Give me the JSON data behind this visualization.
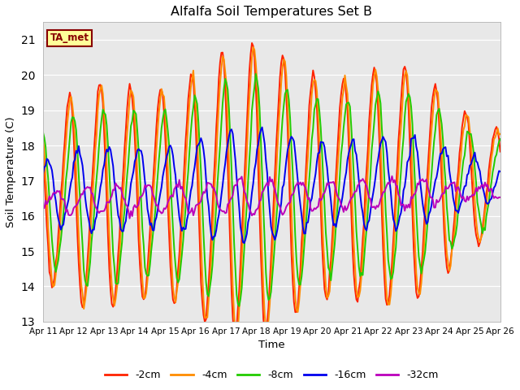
{
  "title": "Alfalfa Soil Temperatures Set B",
  "xlabel": "Time",
  "ylabel": "Soil Temperature (C)",
  "ylim": [
    13.0,
    21.5
  ],
  "yticks": [
    13.0,
    14.0,
    15.0,
    16.0,
    17.0,
    18.0,
    19.0,
    20.0,
    21.0
  ],
  "x_tick_labels": [
    "Apr 11",
    "Apr 12",
    "Apr 13",
    "Apr 14",
    "Apr 15",
    "Apr 16",
    "Apr 17",
    "Apr 18",
    "Apr 19",
    "Apr 20",
    "Apr 21",
    "Apr 22",
    "Apr 23",
    "Apr 24",
    "Apr 25",
    "Apr 26"
  ],
  "colors": {
    "-2cm": "#FF2200",
    "-4cm": "#FF8C00",
    "-8cm": "#22CC00",
    "-16cm": "#0000EE",
    "-32cm": "#BB00BB"
  },
  "legend_labels": [
    "-2cm",
    "-4cm",
    "-8cm",
    "-16cm",
    "-32cm"
  ],
  "annotation_text": "TA_met",
  "annotation_color": "#880000",
  "annotation_bg": "#FFFF99",
  "background_color": "#E8E8E8",
  "fig_bg": "#FFFFFF",
  "grid_color": "#FFFFFF",
  "linewidth": 1.4
}
